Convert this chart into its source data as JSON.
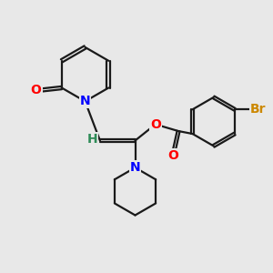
{
  "bg_color": "#e8e8e8",
  "bond_color": "#1a1a1a",
  "N_color": "#0000ff",
  "O_color": "#ff0000",
  "Br_color": "#cc8800",
  "H_color": "#2e8b57",
  "line_width": 1.6,
  "figsize": [
    3.0,
    3.0
  ],
  "dpi": 100,
  "xlim": [
    0,
    10
  ],
  "ylim": [
    0,
    10
  ]
}
